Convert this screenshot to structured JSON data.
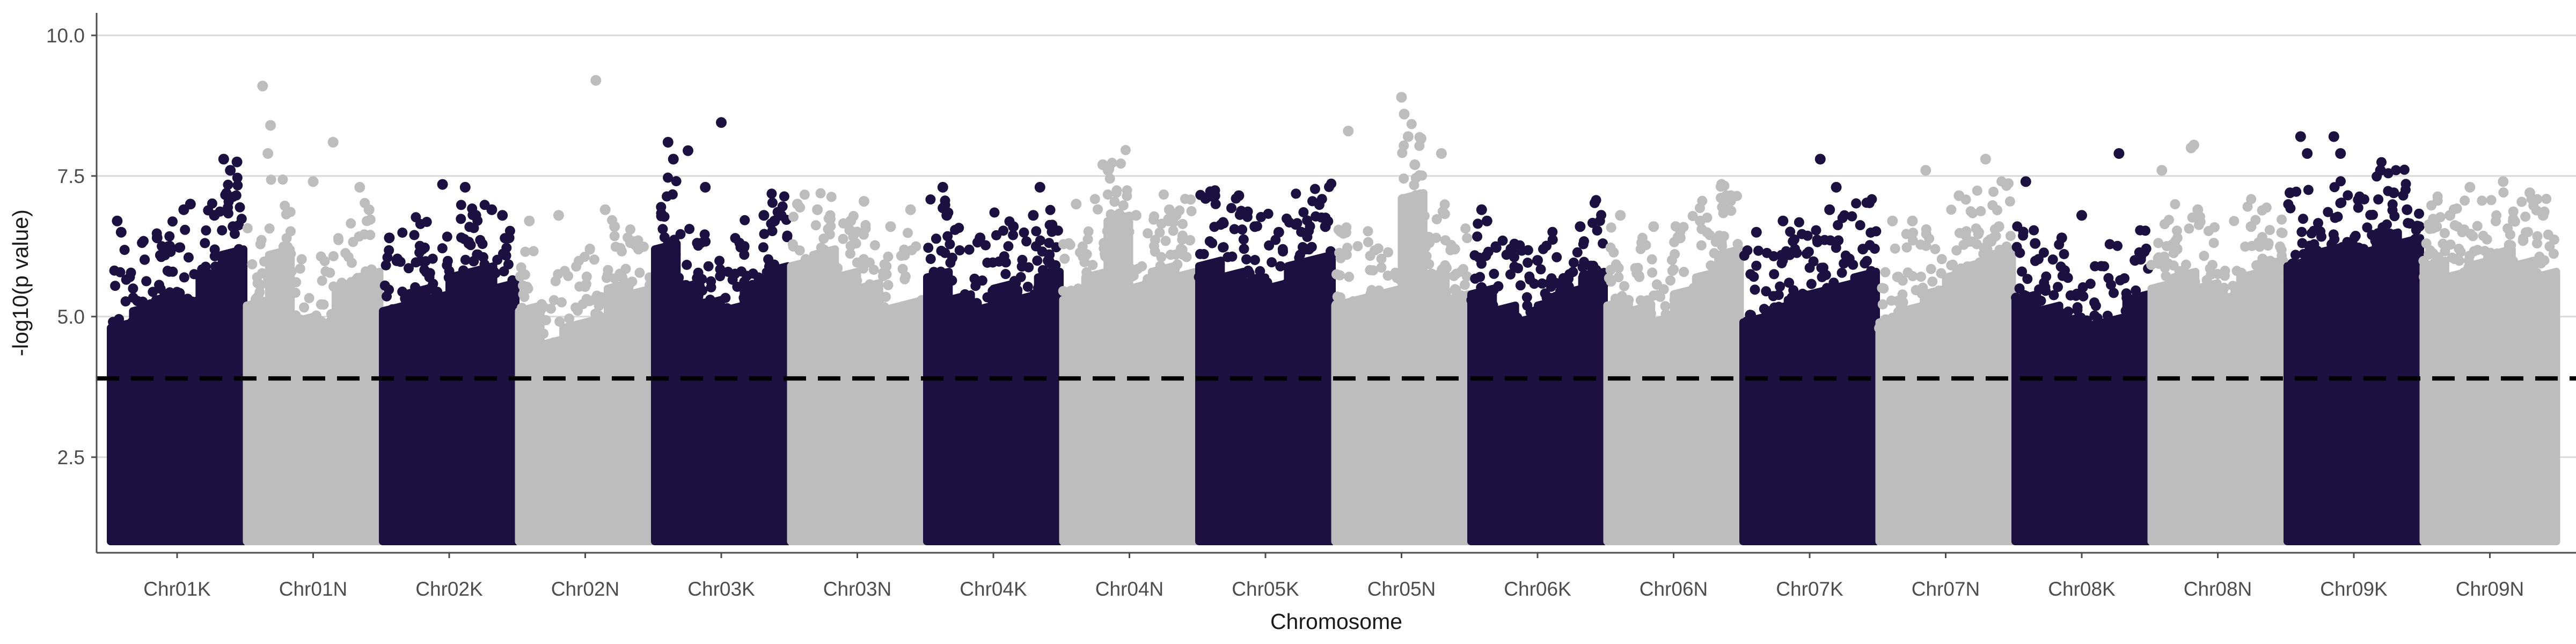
{
  "chart_data": {
    "type": "scatter",
    "subtype": "manhattan",
    "title": "",
    "xlabel": "Chromosome",
    "ylabel": "-log10(p value)",
    "ylim": [
      0.8,
      10.4
    ],
    "yticks": [
      2.5,
      5.0,
      7.5,
      10.0
    ],
    "ytick_labels": [
      "2.5",
      "5.0",
      "7.5",
      "10.0"
    ],
    "grid": "horizontal major",
    "legend": "none",
    "threshold": {
      "value": 3.9,
      "style": "dashed",
      "color": "#000000"
    },
    "colors": {
      "dark": "#1b1040",
      "light": "#bdbdbd",
      "grid": "#d9d9d9",
      "axis": "#4d4d4d"
    },
    "baseline_min": 1.0,
    "categories": [
      "Chr01K",
      "Chr01N",
      "Chr02K",
      "Chr02N",
      "Chr03K",
      "Chr03N",
      "Chr04K",
      "Chr04N",
      "Chr05K",
      "Chr05N",
      "Chr06K",
      "Chr06N",
      "Chr07K",
      "Chr07N",
      "Chr08K",
      "Chr08N",
      "Chr09K",
      "Chr09N"
    ],
    "series": [
      {
        "category": "Chr01K",
        "color": "dark",
        "dense_top": [
          4.9,
          5.2,
          5.4,
          5.3,
          5.8,
          6.2
        ],
        "peak_points": [
          [
            0.05,
            6.7
          ],
          [
            0.08,
            6.5
          ],
          [
            0.35,
            6.4
          ],
          [
            0.55,
            6.9
          ],
          [
            0.6,
            7.0
          ],
          [
            0.78,
            6.8
          ],
          [
            0.85,
            7.8
          ],
          [
            0.9,
            7.6
          ],
          [
            0.95,
            7.75
          ],
          [
            0.92,
            6.6
          ]
        ]
      },
      {
        "category": "Chr01N",
        "color": "light",
        "dense_top": [
          5.3,
          6.2,
          5.0,
          4.9,
          5.6,
          5.8
        ],
        "peak_points": [
          [
            0.12,
            9.1
          ],
          [
            0.18,
            8.4
          ],
          [
            0.16,
            7.9
          ],
          [
            0.5,
            7.4
          ],
          [
            0.65,
            8.1
          ],
          [
            0.85,
            7.3
          ],
          [
            0.92,
            6.9
          ]
        ]
      },
      {
        "category": "Chr02K",
        "color": "dark",
        "dense_top": [
          5.2,
          5.5,
          5.4,
          5.8,
          5.9,
          5.6
        ],
        "peak_points": [
          [
            0.05,
            6.4
          ],
          [
            0.3,
            6.2
          ],
          [
            0.45,
            7.35
          ],
          [
            0.62,
            7.3
          ],
          [
            0.7,
            6.8
          ],
          [
            0.82,
            6.9
          ],
          [
            0.9,
            6.8
          ],
          [
            0.95,
            6.4
          ]
        ]
      },
      {
        "category": "Chr02N",
        "color": "light",
        "dense_top": [
          5.2,
          4.6,
          4.9,
          5.0,
          5.6,
          5.5
        ],
        "peak_points": [
          [
            0.08,
            6.7
          ],
          [
            0.3,
            6.8
          ],
          [
            0.58,
            9.2
          ],
          [
            0.65,
            6.9
          ],
          [
            0.72,
            6.6
          ],
          [
            0.9,
            6.2
          ]
        ]
      },
      {
        "category": "Chr03K",
        "color": "dark",
        "dense_top": [
          6.3,
          5.6,
          5.3,
          5.2,
          5.6,
          5.9
        ],
        "peak_points": [
          [
            0.1,
            8.1
          ],
          [
            0.14,
            7.8
          ],
          [
            0.25,
            7.95
          ],
          [
            0.5,
            8.45
          ],
          [
            0.38,
            7.3
          ],
          [
            0.82,
            6.8
          ],
          [
            0.9,
            6.7
          ],
          [
            0.95,
            6.8
          ]
        ]
      },
      {
        "category": "Chr03N",
        "color": "light",
        "dense_top": [
          6.0,
          6.2,
          5.8,
          5.6,
          5.2,
          5.3
        ],
        "peak_points": [
          [
            0.05,
            7.0
          ],
          [
            0.2,
            6.9
          ],
          [
            0.45,
            6.7
          ],
          [
            0.55,
            7.05
          ],
          [
            0.75,
            6.6
          ],
          [
            0.9,
            6.9
          ]
        ]
      },
      {
        "category": "Chr04K",
        "color": "dark",
        "dense_top": [
          5.8,
          5.4,
          5.2,
          5.6,
          5.4,
          5.8
        ],
        "peak_points": [
          [
            0.12,
            7.3
          ],
          [
            0.15,
            6.8
          ],
          [
            0.4,
            6.4
          ],
          [
            0.65,
            6.6
          ],
          [
            0.85,
            7.3
          ],
          [
            0.8,
            6.8
          ],
          [
            0.92,
            6.1
          ]
        ]
      },
      {
        "category": "Chr04N",
        "color": "light",
        "dense_top": [
          5.4,
          5.8,
          6.8,
          5.6,
          5.9,
          5.8
        ],
        "peak_points": [
          [
            0.1,
            7.0
          ],
          [
            0.3,
            7.7
          ],
          [
            0.34,
            7.6
          ],
          [
            0.55,
            6.8
          ],
          [
            0.8,
            6.9
          ],
          [
            0.85,
            6.8
          ]
        ]
      },
      {
        "category": "Chr05K",
        "color": "dark",
        "dense_top": [
          6.0,
          5.8,
          5.7,
          5.6,
          6.0,
          6.1
        ],
        "peak_points": [
          [
            0.05,
            7.1
          ],
          [
            0.12,
            7.15
          ],
          [
            0.3,
            7.15
          ],
          [
            0.42,
            6.6
          ],
          [
            0.6,
            6.5
          ],
          [
            0.8,
            6.2
          ],
          [
            0.95,
            6.6
          ]
        ]
      },
      {
        "category": "Chr05N",
        "color": "light",
        "dense_top": [
          5.3,
          5.4,
          5.5,
          7.2,
          5.8,
          5.4
        ],
        "peak_points": [
          [
            0.1,
            8.3
          ],
          [
            0.5,
            8.9
          ],
          [
            0.52,
            8.6
          ],
          [
            0.55,
            8.2
          ],
          [
            0.6,
            7.7
          ],
          [
            0.8,
            7.9
          ],
          [
            0.9,
            6.2
          ]
        ]
      },
      {
        "category": "Chr06K",
        "color": "dark",
        "dense_top": [
          5.5,
          5.2,
          5.0,
          5.3,
          5.5,
          5.8
        ],
        "peak_points": [
          [
            0.08,
            6.9
          ],
          [
            0.12,
            6.7
          ],
          [
            0.3,
            6.2
          ],
          [
            0.5,
            6.0
          ],
          [
            0.82,
            6.6
          ],
          [
            0.9,
            5.9
          ]
        ]
      },
      {
        "category": "Chr06N",
        "color": "light",
        "dense_top": [
          5.3,
          5.2,
          5.0,
          5.5,
          5.8,
          6.2
        ],
        "peak_points": [
          [
            0.1,
            6.8
          ],
          [
            0.35,
            6.6
          ],
          [
            0.55,
            6.4
          ],
          [
            0.7,
            6.7
          ],
          [
            0.88,
            7.0
          ],
          [
            0.93,
            7.15
          ]
        ]
      },
      {
        "category": "Chr07K",
        "color": "dark",
        "dense_top": [
          5.0,
          5.2,
          5.4,
          5.5,
          5.6,
          5.8
        ],
        "peak_points": [
          [
            0.1,
            6.5
          ],
          [
            0.3,
            6.7
          ],
          [
            0.35,
            6.1
          ],
          [
            0.58,
            7.8
          ],
          [
            0.65,
            6.9
          ],
          [
            0.7,
            7.3
          ],
          [
            0.9,
            6.2
          ]
        ]
      },
      {
        "category": "Chr07N",
        "color": "light",
        "dense_top": [
          5.0,
          5.2,
          5.5,
          5.8,
          6.0,
          6.2
        ],
        "peak_points": [
          [
            0.1,
            6.7
          ],
          [
            0.25,
            6.7
          ],
          [
            0.35,
            7.6
          ],
          [
            0.6,
            7.15
          ],
          [
            0.8,
            7.8
          ],
          [
            0.9,
            6.6
          ]
        ]
      },
      {
        "category": "Chr08K",
        "color": "dark",
        "dense_top": [
          5.4,
          5.2,
          5.0,
          4.9,
          5.0,
          5.4
        ],
        "peak_points": [
          [
            0.08,
            7.4
          ],
          [
            0.15,
            6.3
          ],
          [
            0.35,
            6.4
          ],
          [
            0.5,
            6.8
          ],
          [
            0.78,
            7.9
          ],
          [
            0.9,
            6.0
          ]
        ]
      },
      {
        "category": "Chr08N",
        "color": "light",
        "dense_top": [
          5.6,
          5.8,
          5.6,
          5.4,
          5.8,
          6.0
        ],
        "peak_points": [
          [
            0.08,
            7.6
          ],
          [
            0.3,
            8.0
          ],
          [
            0.32,
            8.05
          ],
          [
            0.35,
            6.9
          ],
          [
            0.75,
            6.6
          ],
          [
            0.88,
            6.3
          ]
        ]
      },
      {
        "category": "Chr09K",
        "color": "dark",
        "dense_top": [
          6.0,
          6.2,
          6.3,
          6.2,
          6.5,
          6.4
        ],
        "peak_points": [
          [
            0.02,
            7.2
          ],
          [
            0.1,
            8.2
          ],
          [
            0.15,
            7.9
          ],
          [
            0.35,
            8.2
          ],
          [
            0.4,
            7.9
          ],
          [
            0.7,
            7.6
          ],
          [
            0.8,
            7.2
          ],
          [
            0.9,
            6.9
          ]
        ]
      },
      {
        "category": "Chr09N",
        "color": "light",
        "dense_top": [
          6.0,
          5.8,
          6.0,
          6.2,
          6.0,
          5.8
        ],
        "peak_points": [
          [
            0.1,
            6.6
          ],
          [
            0.2,
            6.8
          ],
          [
            0.35,
            7.3
          ],
          [
            0.6,
            7.4
          ],
          [
            0.8,
            7.2
          ],
          [
            0.9,
            6.8
          ]
        ]
      }
    ]
  }
}
